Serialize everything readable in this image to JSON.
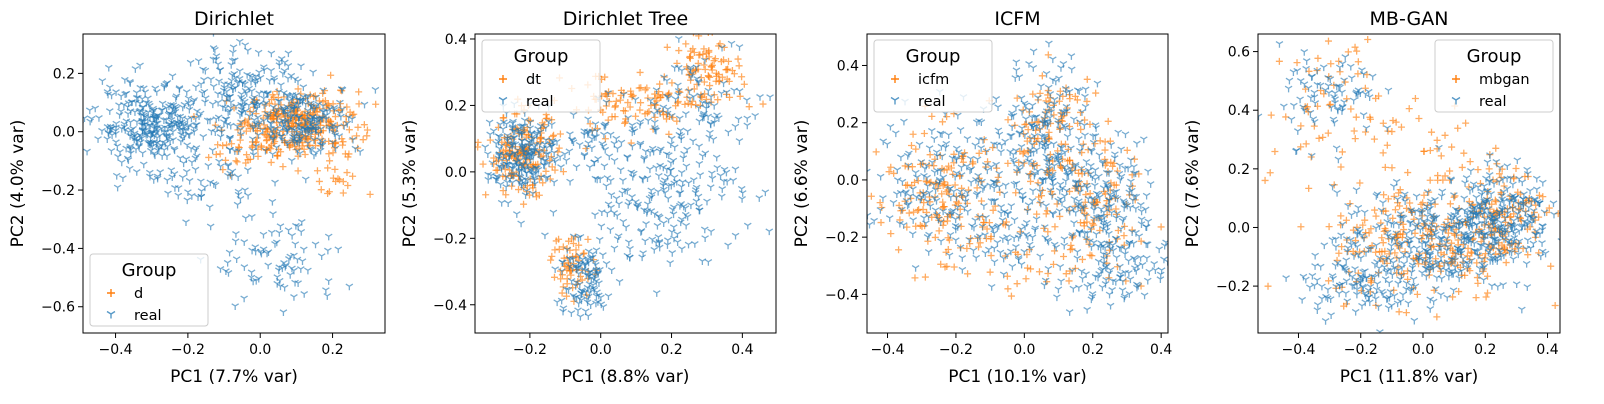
{
  "chart_data": [
    {
      "type": "scatter",
      "title": "Dirichlet",
      "xlabel": "PC1 (7.7% var)",
      "ylabel": "PC2 (4.0% var)",
      "xlim": [
        -0.49,
        0.345
      ],
      "ylim": [
        -0.69,
        0.335
      ],
      "xticks": [
        -0.4,
        -0.2,
        0.0,
        0.2
      ],
      "yticks": [
        -0.6,
        -0.4,
        -0.2,
        0.0,
        0.2
      ],
      "legend": {
        "title": "Group",
        "position": "lower-left"
      },
      "series": [
        {
          "name": "d",
          "color": "#ff7f0e",
          "marker": "plus",
          "clusters": [
            {
              "n": 260,
              "cx": 0.12,
              "cy": 0.03,
              "sx": 0.075,
              "sy": 0.055
            },
            {
              "n": 70,
              "cx": -0.02,
              "cy": -0.03,
              "sx": 0.06,
              "sy": 0.05
            },
            {
              "n": 20,
              "cx": 0.2,
              "cy": -0.17,
              "sx": 0.04,
              "sy": 0.04
            }
          ]
        },
        {
          "name": "real",
          "color": "#1f77b4",
          "marker": "tri_down",
          "clusters": [
            {
              "n": 300,
              "cx": -0.3,
              "cy": 0.02,
              "sx": 0.08,
              "sy": 0.07
            },
            {
              "n": 160,
              "cx": -0.05,
              "cy": 0.13,
              "sx": 0.08,
              "sy": 0.08
            },
            {
              "n": 200,
              "cx": 0.12,
              "cy": 0.04,
              "sx": 0.08,
              "sy": 0.06
            },
            {
              "n": 80,
              "cx": 0.05,
              "cy": -0.45,
              "sx": 0.09,
              "sy": 0.08
            },
            {
              "n": 50,
              "cx": -0.15,
              "cy": -0.17,
              "sx": 0.07,
              "sy": 0.05
            }
          ]
        }
      ]
    },
    {
      "type": "scatter",
      "title": "Dirichlet Tree",
      "xlabel": "PC1 (8.8% var)",
      "ylabel": "PC2 (5.3% var)",
      "xlim": [
        -0.355,
        0.495
      ],
      "ylim": [
        -0.485,
        0.415
      ],
      "xticks": [
        -0.2,
        0.0,
        0.2,
        0.4
      ],
      "yticks": [
        -0.4,
        -0.2,
        0.0,
        0.2,
        0.4
      ],
      "legend": {
        "title": "Group",
        "position": "upper-left"
      },
      "series": [
        {
          "name": "dt",
          "color": "#ff7f0e",
          "marker": "plus",
          "clusters": [
            {
              "n": 170,
              "cx": -0.22,
              "cy": 0.05,
              "sx": 0.05,
              "sy": 0.06
            },
            {
              "n": 100,
              "cx": 0.1,
              "cy": 0.2,
              "sx": 0.1,
              "sy": 0.05
            },
            {
              "n": 90,
              "cx": 0.3,
              "cy": 0.3,
              "sx": 0.05,
              "sy": 0.05
            },
            {
              "n": 60,
              "cx": -0.08,
              "cy": -0.28,
              "sx": 0.03,
              "sy": 0.05
            }
          ]
        },
        {
          "name": "real",
          "color": "#1f77b4",
          "marker": "tri_down",
          "clusters": [
            {
              "n": 200,
              "cx": -0.22,
              "cy": 0.05,
              "sx": 0.05,
              "sy": 0.06
            },
            {
              "n": 220,
              "cx": 0.15,
              "cy": -0.05,
              "sx": 0.12,
              "sy": 0.11
            },
            {
              "n": 100,
              "cx": -0.05,
              "cy": -0.33,
              "sx": 0.04,
              "sy": 0.06
            },
            {
              "n": 80,
              "cx": 0.3,
              "cy": 0.2,
              "sx": 0.07,
              "sy": 0.1
            },
            {
              "n": 60,
              "cx": 0.0,
              "cy": 0.12,
              "sx": 0.08,
              "sy": 0.05
            }
          ]
        }
      ]
    },
    {
      "type": "scatter",
      "title": "ICFM",
      "xlabel": "PC1 (10.1% var)",
      "ylabel": "PC2 (6.6% var)",
      "xlim": [
        -0.46,
        0.42
      ],
      "ylim": [
        -0.535,
        0.51
      ],
      "xticks": [
        -0.4,
        -0.2,
        0.0,
        0.2,
        0.4
      ],
      "yticks": [
        -0.4,
        -0.2,
        0.0,
        0.2,
        0.4
      ],
      "legend": {
        "title": "Group",
        "position": "upper-left"
      },
      "series": [
        {
          "name": "icfm",
          "color": "#ff7f0e",
          "marker": "plus",
          "clusters": [
            {
              "n": 160,
              "cx": -0.25,
              "cy": -0.05,
              "sx": 0.1,
              "sy": 0.12
            },
            {
              "n": 120,
              "cx": 0.08,
              "cy": 0.15,
              "sx": 0.07,
              "sy": 0.12
            },
            {
              "n": 110,
              "cx": 0.2,
              "cy": -0.1,
              "sx": 0.09,
              "sy": 0.12
            },
            {
              "n": 40,
              "cx": -0.05,
              "cy": -0.25,
              "sx": 0.1,
              "sy": 0.08
            }
          ]
        },
        {
          "name": "real",
          "color": "#1f77b4",
          "marker": "tri_down",
          "clusters": [
            {
              "n": 200,
              "cx": -0.22,
              "cy": 0.0,
              "sx": 0.11,
              "sy": 0.12
            },
            {
              "n": 170,
              "cx": 0.08,
              "cy": 0.18,
              "sx": 0.07,
              "sy": 0.12
            },
            {
              "n": 200,
              "cx": 0.22,
              "cy": -0.1,
              "sx": 0.09,
              "sy": 0.11
            },
            {
              "n": 80,
              "cx": 0.25,
              "cy": -0.35,
              "sx": 0.08,
              "sy": 0.06
            },
            {
              "n": 60,
              "cx": -0.05,
              "cy": -0.2,
              "sx": 0.08,
              "sy": 0.08
            }
          ]
        }
      ]
    },
    {
      "type": "scatter",
      "title": "MB-GAN",
      "xlabel": "PC1 (11.8% var)",
      "ylabel": "PC2 (7.6% var)",
      "xlim": [
        -0.53,
        0.44
      ],
      "ylim": [
        -0.36,
        0.66
      ],
      "xticks": [
        -0.4,
        -0.2,
        0.0,
        0.2,
        0.4
      ],
      "yticks": [
        -0.2,
        0.0,
        0.2,
        0.4,
        0.6
      ],
      "legend": {
        "title": "Group",
        "position": "upper-right"
      },
      "series": [
        {
          "name": "mbgan",
          "color": "#ff7f0e",
          "marker": "plus",
          "clusters": [
            {
              "n": 240,
              "cx": 0.0,
              "cy": -0.05,
              "sx": 0.15,
              "sy": 0.1
            },
            {
              "n": 120,
              "cx": 0.25,
              "cy": 0.05,
              "sx": 0.07,
              "sy": 0.08
            },
            {
              "n": 70,
              "cx": -0.25,
              "cy": 0.4,
              "sx": 0.12,
              "sy": 0.13
            },
            {
              "n": 30,
              "cx": 0.05,
              "cy": 0.25,
              "sx": 0.1,
              "sy": 0.08
            }
          ]
        },
        {
          "name": "real",
          "color": "#1f77b4",
          "marker": "tri_down",
          "clusters": [
            {
              "n": 300,
              "cx": 0.0,
              "cy": -0.05,
              "sx": 0.14,
              "sy": 0.09
            },
            {
              "n": 230,
              "cx": 0.25,
              "cy": 0.05,
              "sx": 0.08,
              "sy": 0.08
            },
            {
              "n": 100,
              "cx": -0.2,
              "cy": -0.2,
              "sx": 0.1,
              "sy": 0.05
            },
            {
              "n": 80,
              "cx": -0.3,
              "cy": 0.45,
              "sx": 0.08,
              "sy": 0.08
            }
          ]
        }
      ]
    }
  ]
}
